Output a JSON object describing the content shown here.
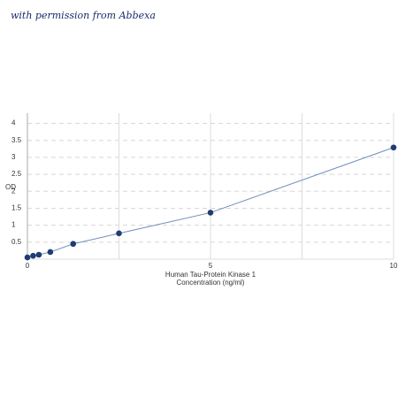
{
  "watermark": "with permission from Abbexa",
  "chart_data": {
    "type": "line",
    "xlabel": [
      "Human Tau-Protein Kinase 1",
      "Concentration (ng/ml)"
    ],
    "ylabel": "OD",
    "x": [
      0,
      0.156,
      0.312,
      0.625,
      1.25,
      2.5,
      5,
      10
    ],
    "series": [
      {
        "color": "#1f3c74",
        "line_color": "#6f8fb8",
        "values": [
          0.05,
          0.1,
          0.13,
          0.21,
          0.45,
          0.76,
          1.37,
          3.29
        ]
      }
    ],
    "xlim": [
      0,
      10
    ],
    "xticks": [
      0,
      5,
      10
    ],
    "ylim": [
      0,
      4.3
    ],
    "yticks": [
      0.5,
      1,
      1.5,
      2,
      2.5,
      3,
      3.5,
      4
    ],
    "grid": true
  }
}
